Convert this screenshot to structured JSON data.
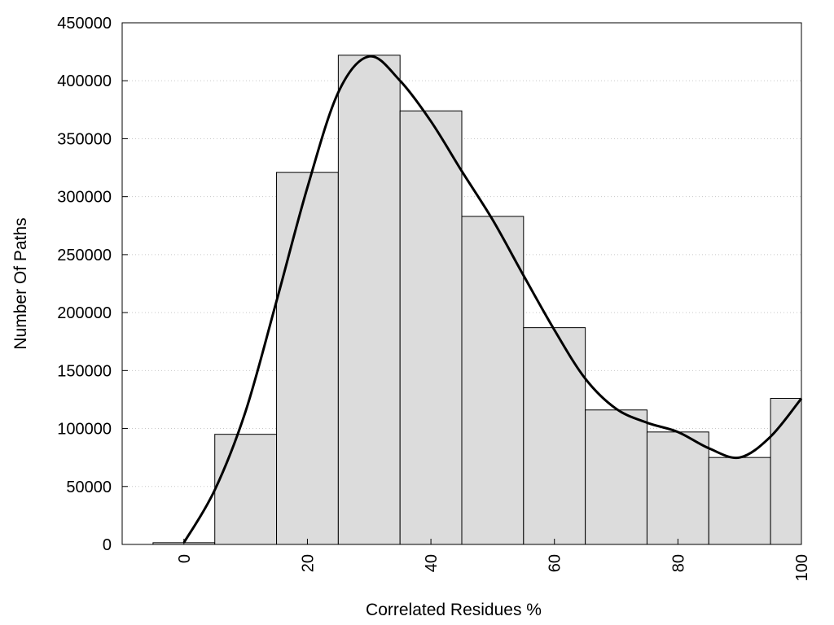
{
  "chart_data": {
    "type": "bar",
    "subtype": "histogram-with-smoothed-curve",
    "title": "",
    "xlabel": "Correlated Residues %",
    "ylabel": "Number Of Paths",
    "xlim": [
      -10,
      100
    ],
    "ylim": [
      0,
      450000
    ],
    "bin_width": 10,
    "x_ticks": [
      0,
      20,
      40,
      60,
      80,
      100
    ],
    "y_ticks": [
      0,
      50000,
      100000,
      150000,
      200000,
      250000,
      300000,
      350000,
      400000,
      450000
    ],
    "grid": "horizontal dotted",
    "legend": "none",
    "bar_color": "#dcdcdc",
    "line_color": "#000000",
    "bars": [
      {
        "center": 0,
        "value": 1500
      },
      {
        "center": 10,
        "value": 95000
      },
      {
        "center": 20,
        "value": 321000
      },
      {
        "center": 30,
        "value": 422000
      },
      {
        "center": 40,
        "value": 374000
      },
      {
        "center": 50,
        "value": 283000
      },
      {
        "center": 60,
        "value": 187000
      },
      {
        "center": 70,
        "value": 116000
      },
      {
        "center": 80,
        "value": 97000
      },
      {
        "center": 90,
        "value": 75000
      },
      {
        "center": 100,
        "value": 126000
      }
    ],
    "curve": [
      {
        "x": 0,
        "y": 1500
      },
      {
        "x": 5,
        "y": 47000
      },
      {
        "x": 10,
        "y": 115000
      },
      {
        "x": 15,
        "y": 210000
      },
      {
        "x": 20,
        "y": 308000
      },
      {
        "x": 25,
        "y": 390000
      },
      {
        "x": 30,
        "y": 421000
      },
      {
        "x": 35,
        "y": 400000
      },
      {
        "x": 40,
        "y": 365000
      },
      {
        "x": 45,
        "y": 322000
      },
      {
        "x": 50,
        "y": 280000
      },
      {
        "x": 55,
        "y": 232000
      },
      {
        "x": 60,
        "y": 185000
      },
      {
        "x": 65,
        "y": 143000
      },
      {
        "x": 70,
        "y": 117000
      },
      {
        "x": 75,
        "y": 105000
      },
      {
        "x": 80,
        "y": 97000
      },
      {
        "x": 85,
        "y": 83000
      },
      {
        "x": 90,
        "y": 75000
      },
      {
        "x": 95,
        "y": 93000
      },
      {
        "x": 100,
        "y": 126000
      }
    ]
  }
}
